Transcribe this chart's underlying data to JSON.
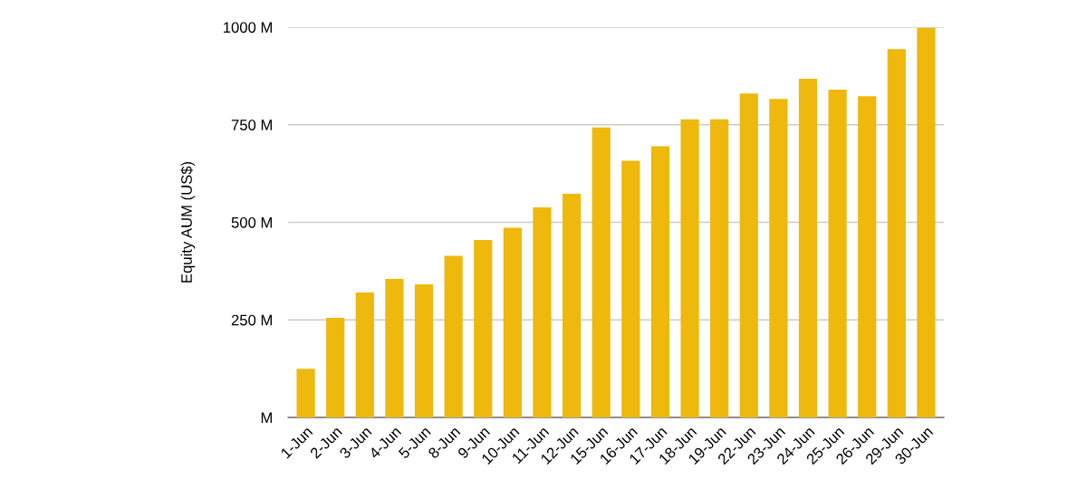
{
  "chart_data": {
    "type": "bar",
    "ylabel": "Equity AUM (US$)",
    "categories": [
      "1-Jun",
      "2-Jun",
      "3-Jun",
      "4-Jun",
      "5-Jun",
      "8-Jun",
      "9-Jun",
      "10-Jun",
      "11-Jun",
      "12-Jun",
      "15-Jun",
      "16-Jun",
      "17-Jun",
      "18-Jun",
      "19-Jun",
      "22-Jun",
      "23-Jun",
      "24-Jun",
      "25-Jun",
      "26-Jun",
      "29-Jun",
      "30-Jun"
    ],
    "values": [
      125,
      255,
      320,
      355,
      341,
      414,
      455,
      486,
      538,
      573,
      743,
      658,
      695,
      764,
      764,
      830,
      816,
      868,
      840,
      823,
      944,
      998
    ],
    "color": "#efb80d",
    "ylim": [
      0,
      1000
    ],
    "yticks": [
      {
        "value": 0,
        "label": "M"
      },
      {
        "value": 250,
        "label": "250 M"
      },
      {
        "value": 500,
        "label": "500 M"
      },
      {
        "value": 750,
        "label": "750 M"
      },
      {
        "value": 1000,
        "label": "1000 M"
      }
    ],
    "grid": "y",
    "legend": false
  }
}
